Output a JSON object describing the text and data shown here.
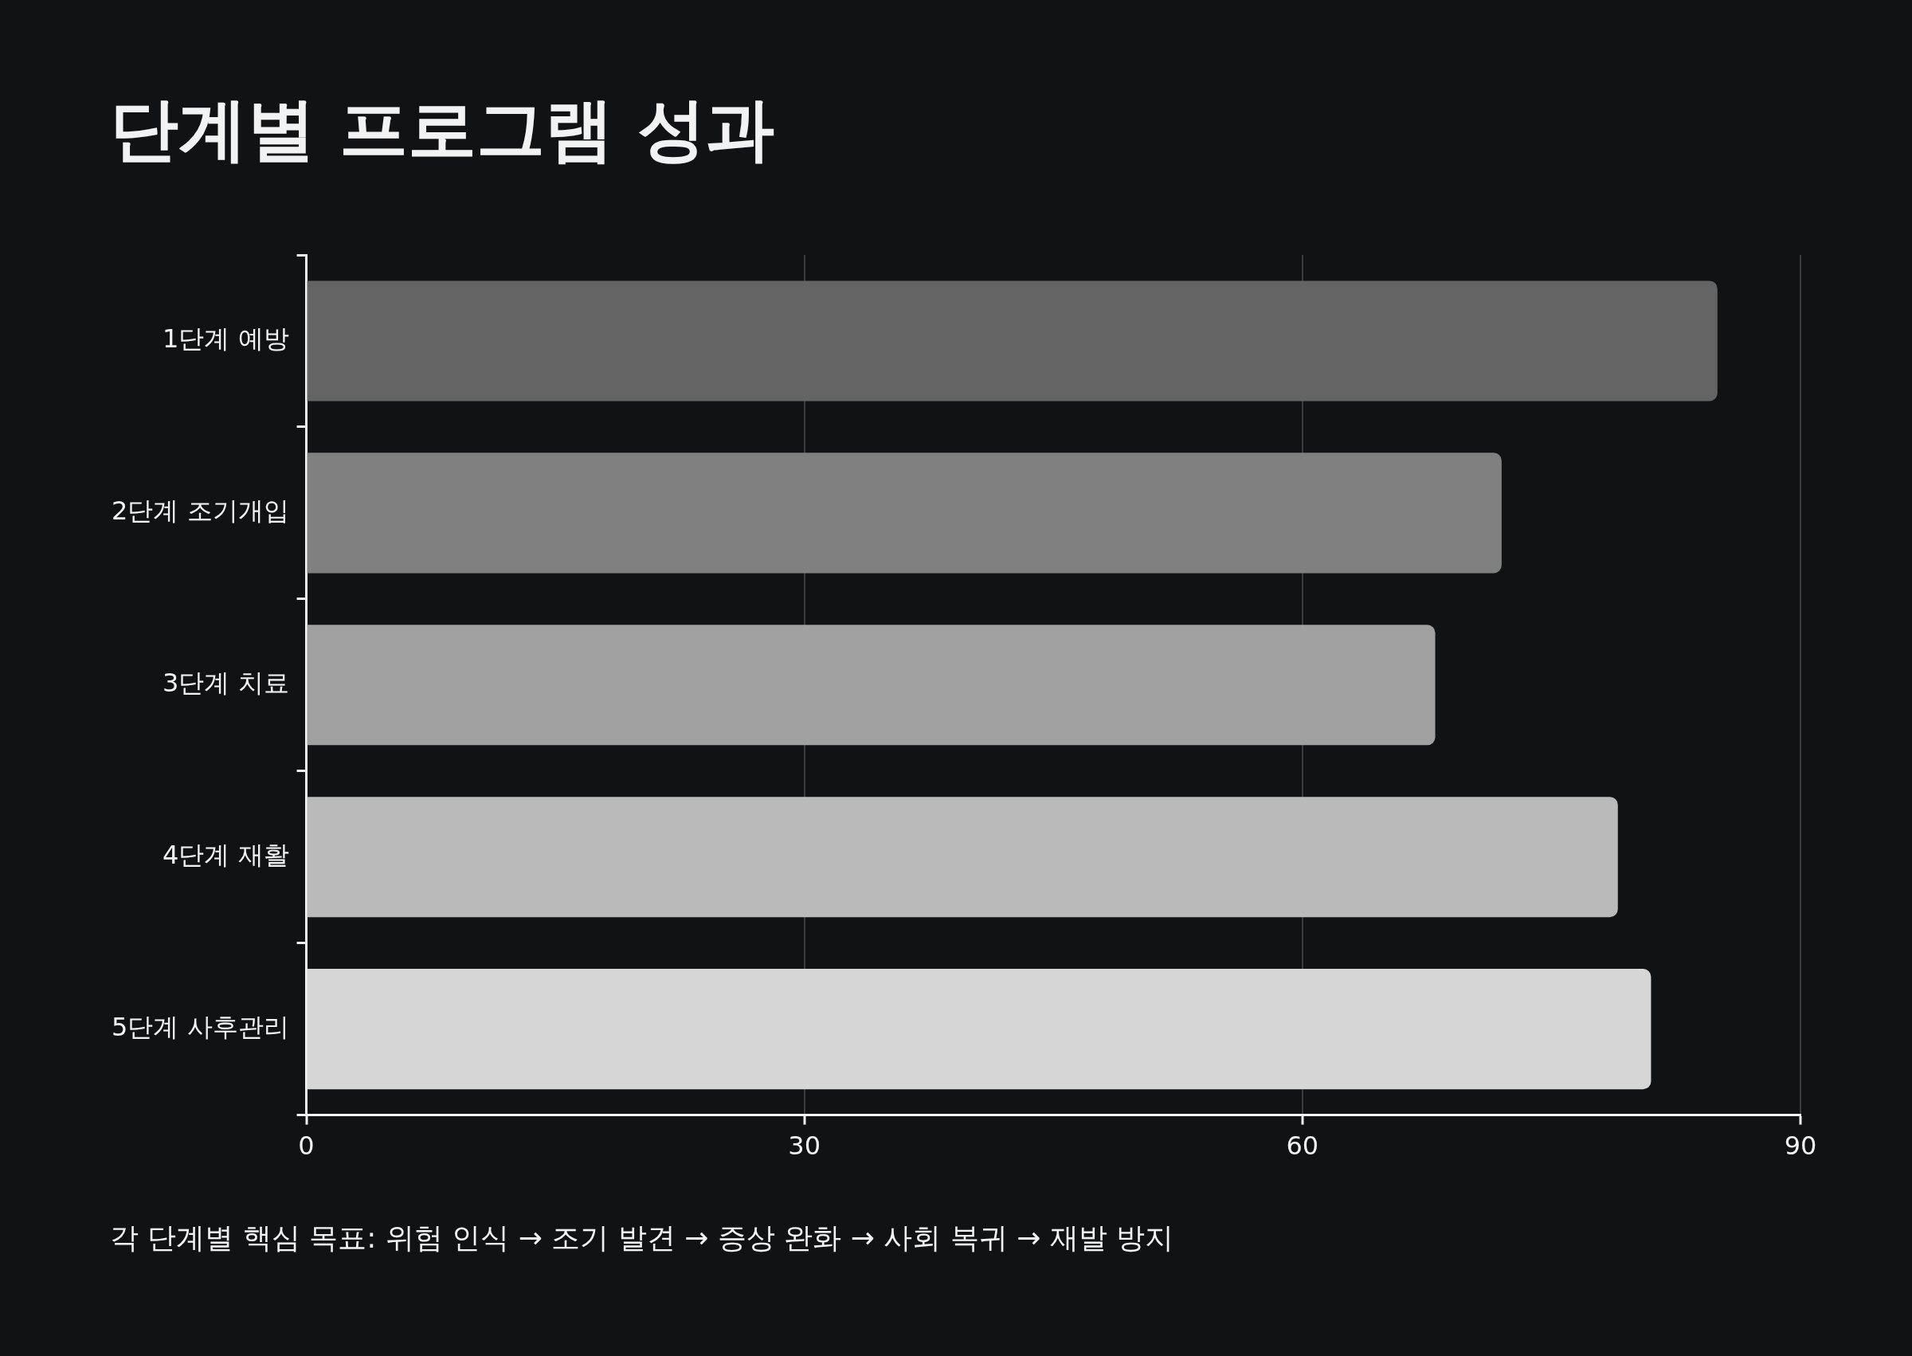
{
  "chart_data": {
    "type": "bar",
    "orientation": "horizontal",
    "title": "단계별 프로그램 성과",
    "categories": [
      "1단계 예방",
      "2단계 조기개입",
      "3단계 치료",
      "4단계 재활",
      "5단계 사후관리"
    ],
    "values": [
      85,
      72,
      68,
      79,
      81
    ],
    "colors": [
      "#646464",
      "#808080",
      "#a0a0a0",
      "#bababa",
      "#d6d6d6"
    ],
    "xlim": [
      0,
      90
    ],
    "xticks": [
      0,
      30,
      60,
      90
    ],
    "grid": "x",
    "legend": false,
    "annotations": [
      "각 단계별 핵심 목표: 위험 인식 → 조기 발견 → 증상 완화 → 사회 복귀 → 재발 방지"
    ]
  }
}
